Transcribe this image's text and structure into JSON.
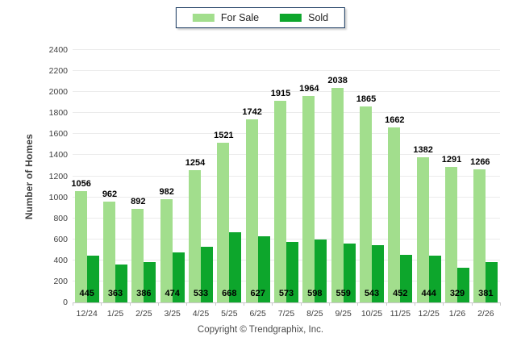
{
  "chart_data": {
    "type": "bar",
    "title": "",
    "categories": [
      "12/24",
      "1/25",
      "2/25",
      "3/25",
      "4/25",
      "5/25",
      "6/25",
      "7/25",
      "8/25",
      "9/25",
      "10/25",
      "11/25",
      "12/25",
      "1/26",
      "2/26"
    ],
    "series": [
      {
        "name": "For Sale",
        "color": "#A2DE8D",
        "values": [
          1056,
          962,
          892,
          982,
          1254,
          1521,
          1742,
          1915,
          1964,
          2038,
          1865,
          1662,
          1382,
          1291,
          1266
        ]
      },
      {
        "name": "Sold",
        "color": "#0DA62C",
        "values": [
          445,
          363,
          386,
          474,
          533,
          668,
          627,
          573,
          598,
          559,
          543,
          452,
          444,
          329,
          381
        ]
      }
    ],
    "xlabel": "",
    "ylabel": "Number of Homes",
    "ylim": [
      0,
      2400
    ],
    "ytick_step": 200,
    "grid": true,
    "legend_position": "top-center",
    "value_labels": {
      "for_sale_position": "above-bar",
      "sold_position": "bottom-inside"
    }
  },
  "colors": {
    "grid": "#EBEBEB",
    "axis": "#C9C9C9",
    "tick_text": "#404040",
    "value_label_text": "#000000",
    "legend_border": "#17375E",
    "background": "#FFFFFF"
  },
  "footer": {
    "copyright": "Copyright © Trendgraphix, Inc."
  }
}
